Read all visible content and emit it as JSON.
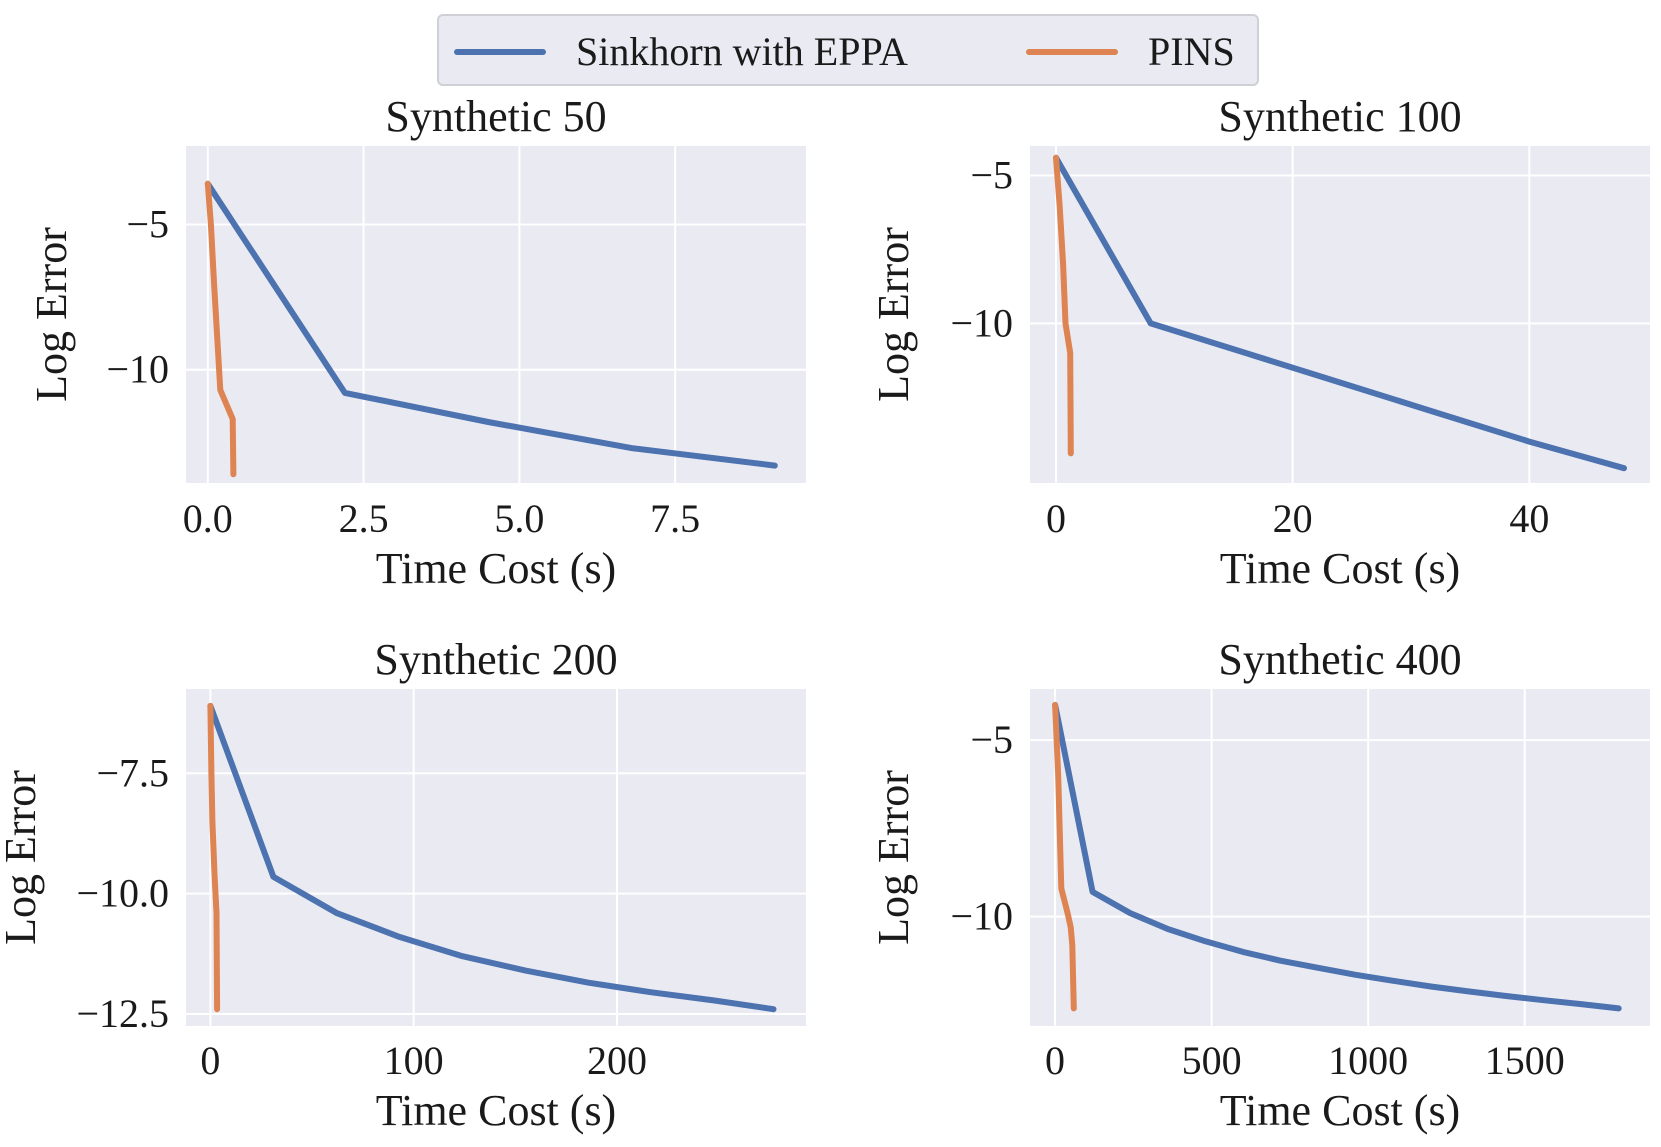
{
  "legend": {
    "series": [
      {
        "name": "Sinkhorn with EPPA",
        "color": "#4c72b0"
      },
      {
        "name": "PINS",
        "color": "#dd8452"
      }
    ]
  },
  "colors": {
    "panel_bg": "#eaeaf2",
    "grid": "#ffffff",
    "text": "#1a1a1a"
  },
  "chart_data": [
    {
      "type": "line",
      "title": "Synthetic 50",
      "xlabel": "Time Cost (s)",
      "ylabel": "Log Error",
      "xlim": [
        -0.35,
        9.6
      ],
      "ylim": [
        -13.9,
        -2.3
      ],
      "xticks": [
        0.0,
        2.5,
        5.0,
        7.5
      ],
      "xtick_labels": [
        "0.0",
        "2.5",
        "5.0",
        "7.5"
      ],
      "yticks": [
        -5,
        -10
      ],
      "ytick_labels": [
        "−5",
        "−10"
      ],
      "series": [
        {
          "name": "Sinkhorn with EPPA",
          "x": [
            0.0,
            2.2,
            4.5,
            6.8,
            9.1
          ],
          "y": [
            -3.6,
            -10.8,
            -11.8,
            -12.7,
            -13.3
          ]
        },
        {
          "name": "PINS",
          "x": [
            0.0,
            0.05,
            0.1,
            0.2,
            0.4,
            0.41
          ],
          "y": [
            -3.6,
            -5.0,
            -7.0,
            -10.7,
            -11.7,
            -13.6
          ]
        }
      ]
    },
    {
      "type": "line",
      "title": "Synthetic 100",
      "xlabel": "Time Cost (s)",
      "ylabel": "Log Error",
      "xlim": [
        -2.2,
        50.2
      ],
      "ylim": [
        -15.4,
        -4.0
      ],
      "xticks": [
        0,
        20,
        40
      ],
      "xtick_labels": [
        "0",
        "20",
        "40"
      ],
      "yticks": [
        -5,
        -10
      ],
      "ytick_labels": [
        "−5",
        "−10"
      ],
      "series": [
        {
          "name": "Sinkhorn with EPPA",
          "x": [
            0.0,
            8.0,
            16.0,
            24.0,
            32.0,
            40.0,
            48.0
          ],
          "y": [
            -4.4,
            -10.0,
            -11.0,
            -12.0,
            -13.0,
            -14.0,
            -14.9
          ]
        },
        {
          "name": "PINS",
          "x": [
            0.0,
            0.3,
            0.6,
            0.8,
            1.2,
            1.25
          ],
          "y": [
            -4.4,
            -6.0,
            -8.0,
            -10.0,
            -11.0,
            -14.4
          ]
        }
      ]
    },
    {
      "type": "line",
      "title": "Synthetic 200",
      "xlabel": "Time Cost (s)",
      "ylabel": "Log Error",
      "xlim": [
        -12,
        293
      ],
      "ylim": [
        -12.75,
        -5.75
      ],
      "xticks": [
        0,
        100,
        200
      ],
      "xtick_labels": [
        "0",
        "100",
        "200"
      ],
      "yticks": [
        -7.5,
        -10.0,
        -12.5
      ],
      "ytick_labels": [
        "−7.5",
        "−10.0",
        "−12.5"
      ],
      "series": [
        {
          "name": "Sinkhorn with EPPA",
          "x": [
            0,
            31,
            62,
            93,
            124,
            155,
            186,
            217,
            248,
            277
          ],
          "y": [
            -6.1,
            -9.65,
            -10.4,
            -10.9,
            -11.3,
            -11.6,
            -11.85,
            -12.05,
            -12.22,
            -12.4
          ]
        },
        {
          "name": "PINS",
          "x": [
            0,
            0.5,
            1.0,
            2.0,
            3.0,
            3.3
          ],
          "y": [
            -6.1,
            -7.5,
            -8.5,
            -9.6,
            -10.4,
            -12.4
          ]
        }
      ]
    },
    {
      "type": "line",
      "title": "Synthetic 400",
      "xlabel": "Time Cost (s)",
      "ylabel": "Log Error",
      "xlim": [
        -80,
        1900
      ],
      "ylim": [
        -13.1,
        -3.55
      ],
      "xticks": [
        0,
        500,
        1000,
        1500
      ],
      "xtick_labels": [
        "0",
        "500",
        "1000",
        "1500"
      ],
      "yticks": [
        -5,
        -10
      ],
      "ytick_labels": [
        "−5",
        "−10"
      ],
      "series": [
        {
          "name": "Sinkhorn with EPPA",
          "x": [
            0,
            120,
            240,
            360,
            480,
            600,
            720,
            840,
            960,
            1080,
            1200,
            1320,
            1440,
            1560,
            1680,
            1800
          ],
          "y": [
            -4.0,
            -9.3,
            -9.9,
            -10.35,
            -10.7,
            -11.0,
            -11.25,
            -11.45,
            -11.65,
            -11.82,
            -11.98,
            -12.12,
            -12.25,
            -12.37,
            -12.48,
            -12.6
          ]
        },
        {
          "name": "PINS",
          "x": [
            0,
            10,
            20,
            40,
            50,
            55,
            60
          ],
          "y": [
            -4.0,
            -6.0,
            -9.2,
            -9.9,
            -10.3,
            -10.8,
            -12.6
          ]
        }
      ]
    }
  ]
}
